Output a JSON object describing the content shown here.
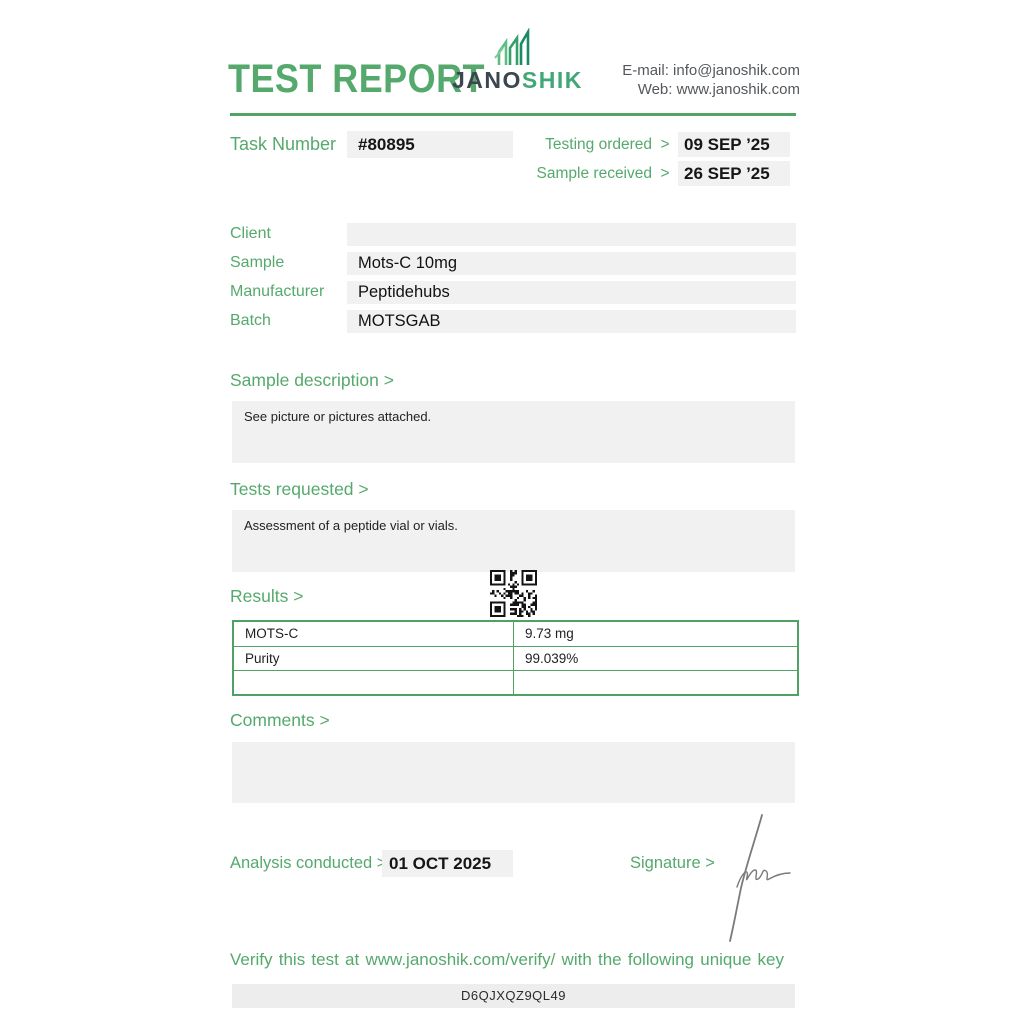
{
  "header": {
    "title": "TEST REPORT",
    "logo": {
      "dark": "JANO",
      "green": "SHIK"
    },
    "contact": {
      "email_line": "E-mail: info@janoshik.com",
      "web_line": "Web: www.janoshik.com"
    }
  },
  "task": {
    "label": "Task Number",
    "value": "#80895"
  },
  "dates": {
    "rows": [
      {
        "label": "Testing ordered",
        "chevron": ">",
        "value": "09 SEP ’25"
      },
      {
        "label": "Sample received",
        "chevron": ">",
        "value": "26 SEP ’25"
      }
    ]
  },
  "details": {
    "rows": [
      {
        "label": "Client",
        "value": ""
      },
      {
        "label": "Sample",
        "value": "Mots-C 10mg"
      },
      {
        "label": "Manufacturer",
        "value": "Peptidehubs"
      },
      {
        "label": "Batch",
        "value": "MOTSGAB"
      }
    ]
  },
  "sections": {
    "sample_description": {
      "title": "Sample description >",
      "body": "See picture or pictures attached."
    },
    "tests_requested": {
      "title": "Tests requested >",
      "body": "Assessment of a peptide vial or vials."
    },
    "results": {
      "title": "Results >"
    },
    "comments": {
      "title": "Comments >",
      "body": ""
    }
  },
  "results_table": {
    "rows": [
      {
        "name": "MOTS-C",
        "value": "9.73 mg"
      },
      {
        "name": "Purity",
        "value": "99.039%"
      },
      {
        "name": "",
        "value": ""
      }
    ]
  },
  "footer": {
    "analysis_label": "Analysis conducted >",
    "analysis_date": "01 OCT 2025",
    "signature_label": "Signature >",
    "verify_text": "Verify this test at www.janoshik.com/verify/ with the following unique key",
    "verify_key": "D6QJXQZ9QL49"
  },
  "colors": {
    "accent_green": "#55a96c",
    "divider_green": "#54a366",
    "table_border_green": "#4fa164",
    "box_gray": "#f1f1f1",
    "logo_dark": "#3a4650",
    "logo_green": "#3fa876",
    "text_dark": "#1d1d1b"
  }
}
